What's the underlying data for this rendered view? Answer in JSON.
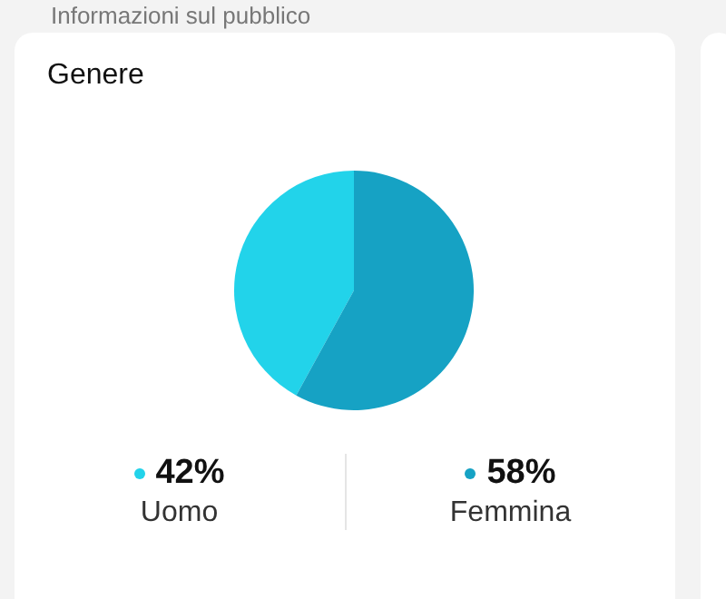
{
  "chart_data": {
    "type": "pie",
    "title": "Genere",
    "annotations": [
      "Informazioni sul pubblico"
    ],
    "categories": [
      "Uomo",
      "Femmina"
    ],
    "values": [
      42,
      58
    ],
    "colors": [
      "#22d3ea",
      "#16a2c4"
    ],
    "value_labels": [
      "42%",
      "58%"
    ],
    "legend": "bottom"
  }
}
